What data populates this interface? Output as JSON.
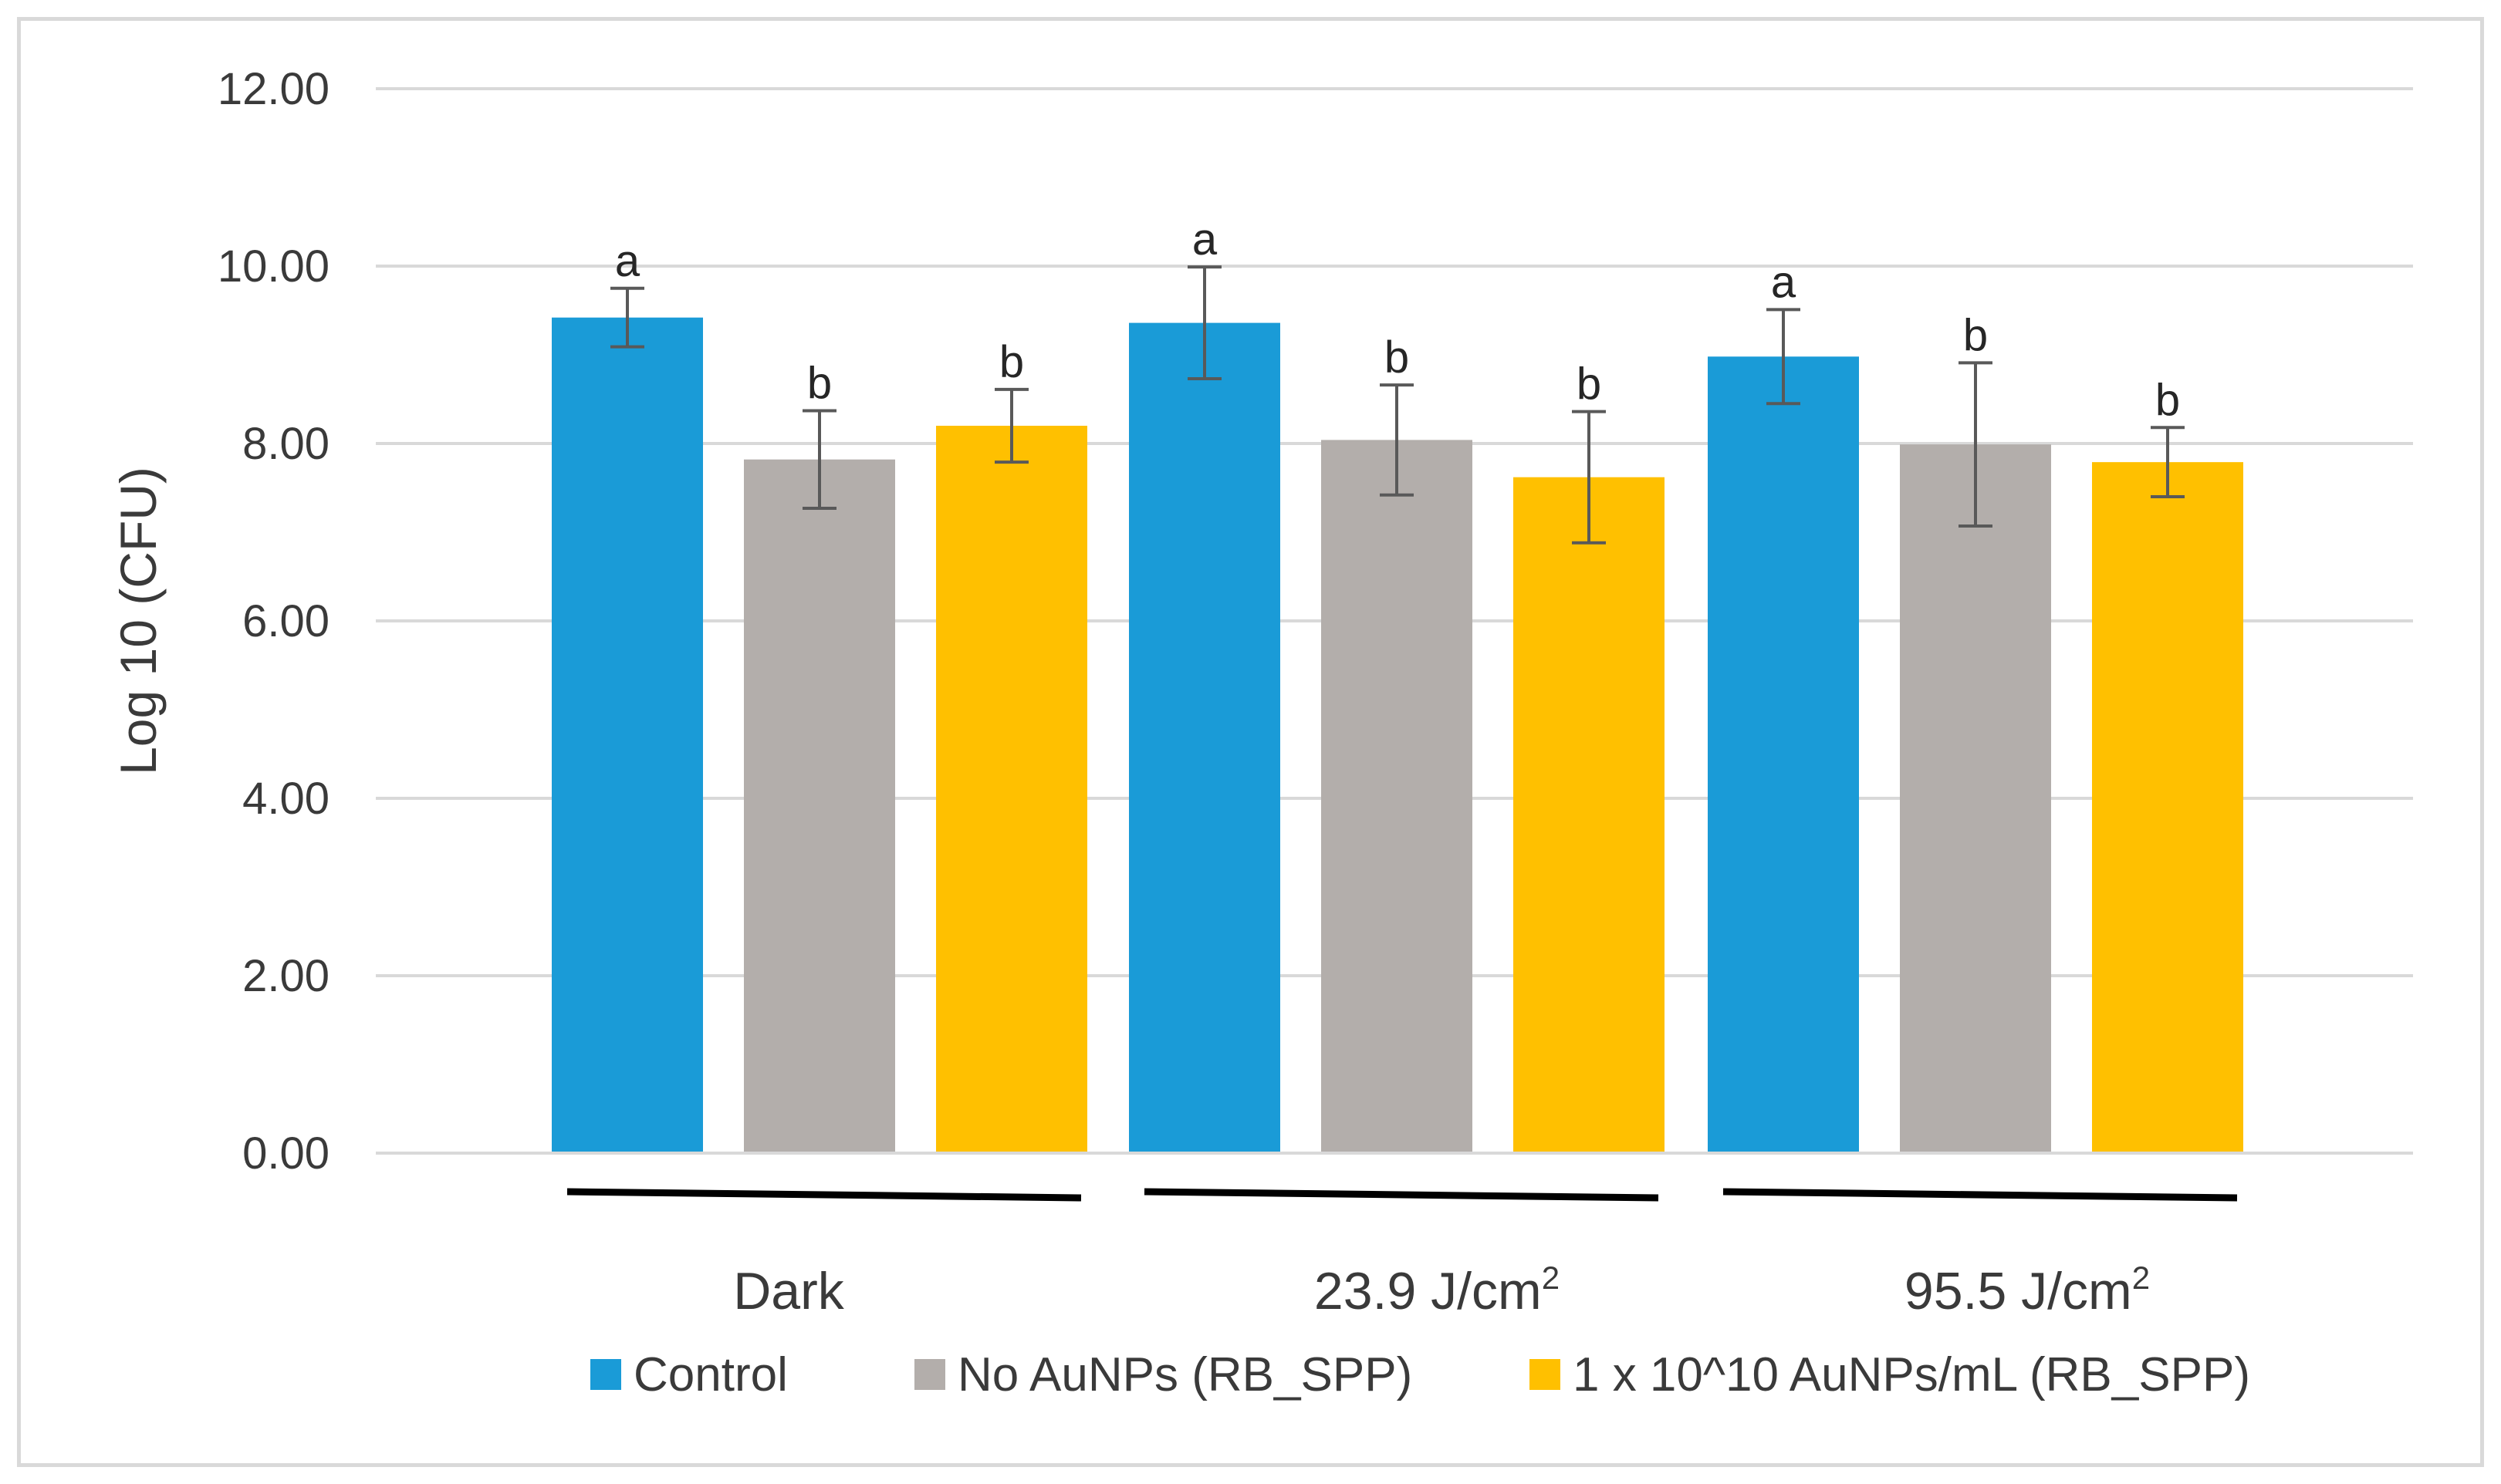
{
  "chart_data": {
    "type": "bar",
    "title": "",
    "xlabel": "",
    "ylabel": "Log 10 (CFU)",
    "ylim": [
      0,
      12
    ],
    "yticks": [
      "0.00",
      "2.00",
      "4.00",
      "6.00",
      "8.00",
      "10.00",
      "12.00"
    ],
    "grid": true,
    "legend_position": "bottom",
    "categories": [
      {
        "label": "Dark",
        "superscript": ""
      },
      {
        "label": "23.9 J/cm",
        "superscript": "2"
      },
      {
        "label": "95.5 J/cm",
        "superscript": "2"
      }
    ],
    "series": [
      {
        "name": "Control",
        "color": "#1a9bd7",
        "values": [
          9.42,
          9.36,
          8.98
        ],
        "errors": [
          0.33,
          0.63,
          0.53
        ],
        "significance": [
          "a",
          "a",
          "a"
        ]
      },
      {
        "name": "No AuNPs (RB_SPP)",
        "color": "#b3aeab",
        "values": [
          7.82,
          8.04,
          7.99
        ],
        "errors": [
          0.55,
          0.62,
          0.92
        ],
        "significance": [
          "b",
          "b",
          "b"
        ]
      },
      {
        "name": "1 x 10^10 AuNPs/mL (RB_SPP)",
        "color": "#ffc000",
        "values": [
          8.2,
          7.62,
          7.79
        ],
        "errors": [
          0.41,
          0.74,
          0.39
        ],
        "significance": [
          "b",
          "b",
          "b"
        ]
      }
    ]
  }
}
